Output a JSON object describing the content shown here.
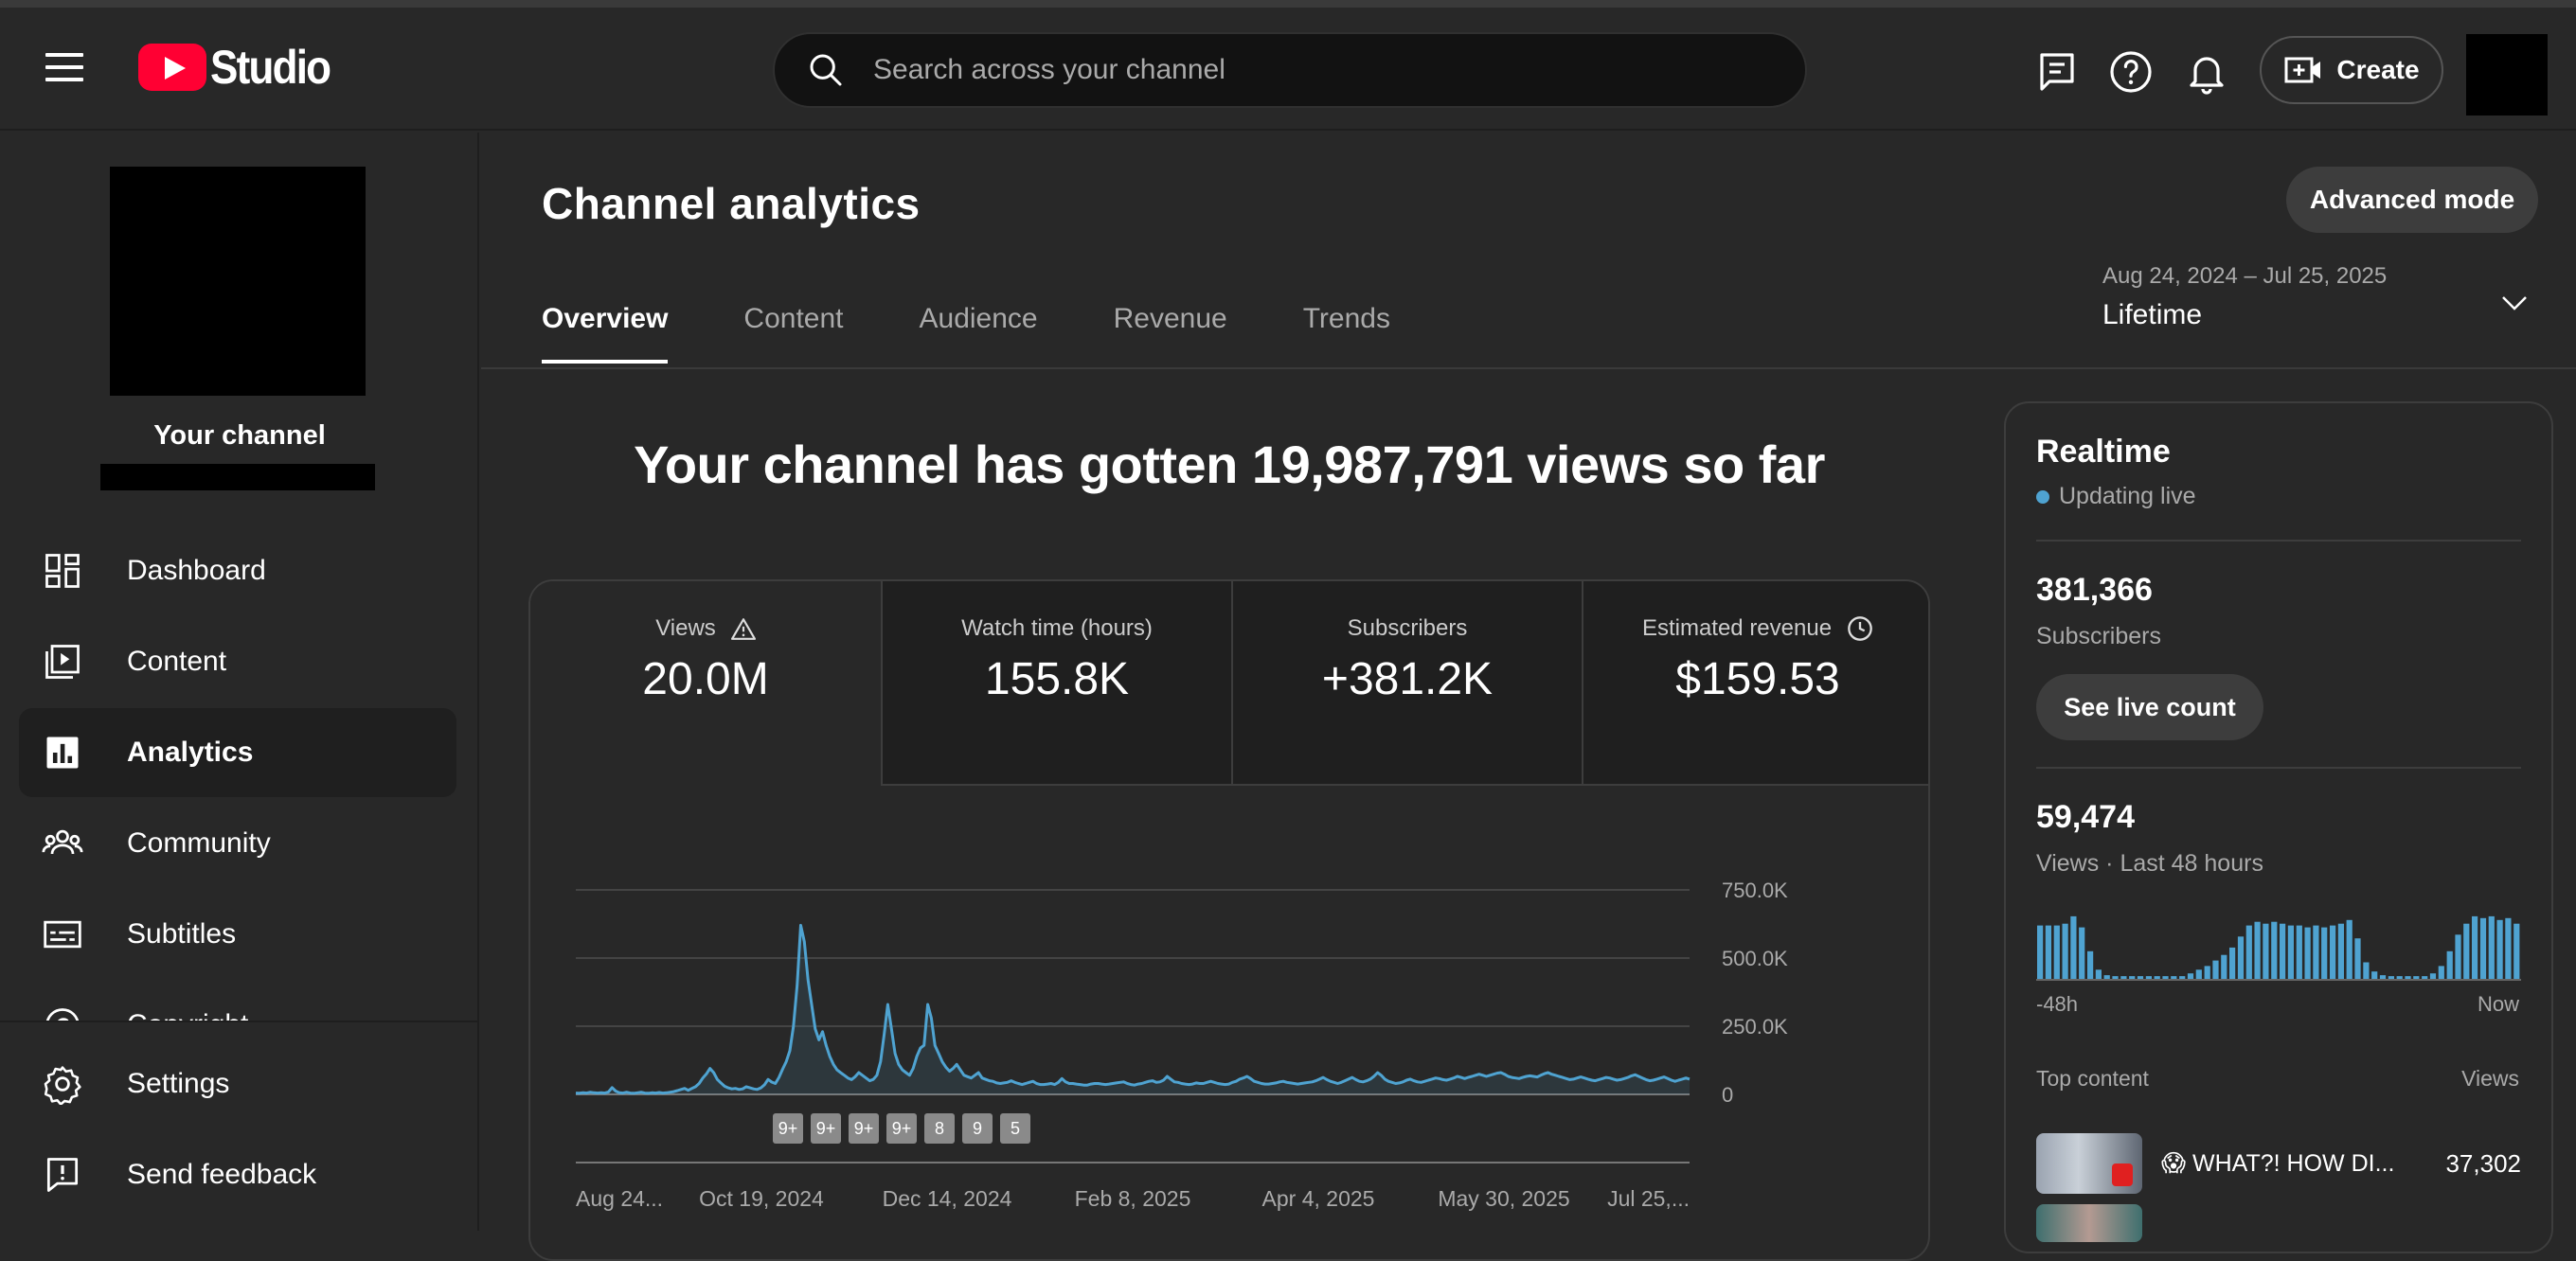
{
  "app": {
    "brand_name": "Studio",
    "search_placeholder": "Search across your channel",
    "create_label": "Create",
    "colors": {
      "background": "#282828",
      "accent": "#ff0033",
      "chart_line": "#4fa3d1"
    }
  },
  "sidebar": {
    "channel_title": "Your channel",
    "items": [
      {
        "label": "Dashboard",
        "icon": "dashboard-icon"
      },
      {
        "label": "Content",
        "icon": "content-icon"
      },
      {
        "label": "Analytics",
        "icon": "analytics-icon",
        "active": true
      },
      {
        "label": "Community",
        "icon": "community-icon"
      },
      {
        "label": "Subtitles",
        "icon": "subtitles-icon"
      },
      {
        "label": "Copyright",
        "icon": "copyright-icon"
      }
    ],
    "bottom_items": [
      {
        "label": "Settings",
        "icon": "gear-icon"
      },
      {
        "label": "Send feedback",
        "icon": "feedback-icon"
      }
    ]
  },
  "page": {
    "title": "Channel analytics",
    "advanced_mode_label": "Advanced mode",
    "tabs": [
      "Overview",
      "Content",
      "Audience",
      "Revenue",
      "Trends"
    ],
    "active_tab": "Overview",
    "date_range": {
      "range": "Aug 24, 2024 – Jul 25, 2025",
      "label": "Lifetime"
    },
    "headline": "Your channel has gotten 19,987,791 views so far"
  },
  "metrics": [
    {
      "label": "Views",
      "value": "20.0M",
      "icon": "warning-icon"
    },
    {
      "label": "Watch time (hours)",
      "value": "155.8K"
    },
    {
      "label": "Subscribers",
      "value": "+381.2K"
    },
    {
      "label": "Estimated revenue",
      "value": "$159.53",
      "icon": "clock-icon"
    }
  ],
  "chart_data": {
    "type": "line",
    "series": [
      {
        "values": [
          5,
          4,
          6,
          5,
          8,
          6,
          5,
          6,
          5,
          9,
          25,
          12,
          6,
          5,
          8,
          5,
          4,
          6,
          8,
          5,
          4,
          6,
          5,
          7,
          5,
          6,
          8,
          10,
          14,
          18,
          22,
          15,
          22,
          28,
          40,
          60,
          75,
          95,
          80,
          55,
          42,
          30,
          24,
          20,
          22,
          18,
          20,
          28,
          24,
          20,
          18,
          24,
          35,
          55,
          45,
          40,
          62,
          92,
          120,
          160,
          250,
          400,
          620,
          560,
          420,
          330,
          240,
          200,
          230,
          180,
          140,
          110,
          90,
          80,
          70,
          60,
          54,
          65,
          80,
          70,
          60,
          50,
          55,
          70,
          120,
          220,
          330,
          240,
          150,
          110,
          90,
          80,
          70,
          95,
          140,
          170,
          180,
          330,
          280,
          180,
          150,
          120,
          100,
          85,
          95,
          110,
          90,
          70,
          65,
          60,
          70,
          80,
          60,
          55,
          50,
          48,
          42,
          40,
          42,
          44,
          50,
          44,
          40,
          36,
          40,
          44,
          48,
          40,
          36,
          36,
          38,
          40,
          36,
          44,
          58,
          46,
          40,
          40,
          38,
          36,
          34,
          34,
          38,
          40,
          40,
          38,
          36,
          38,
          40,
          42,
          44,
          46,
          40,
          36,
          34,
          38,
          40,
          44,
          48,
          50,
          44,
          46,
          52,
          66,
          56,
          46,
          44,
          40,
          38,
          36,
          38,
          42,
          40,
          40,
          44,
          48,
          44,
          40,
          38,
          36,
          38,
          44,
          48,
          56,
          60,
          66,
          58,
          48,
          44,
          40,
          38,
          38,
          40,
          42,
          46,
          48,
          44,
          42,
          40,
          38,
          40,
          42,
          44,
          46,
          50,
          56,
          62,
          54,
          48,
          44,
          40,
          44,
          50,
          56,
          62,
          54,
          48,
          46,
          50,
          56,
          66,
          80,
          70,
          56,
          48,
          44,
          40,
          42,
          46,
          52,
          56,
          50,
          46,
          44,
          48,
          52,
          56,
          60,
          58,
          54,
          52,
          56,
          60,
          66,
          62,
          58,
          62,
          66,
          70,
          74,
          70,
          66,
          70,
          74,
          78,
          80,
          74,
          66,
          62,
          60,
          58,
          62,
          66,
          68,
          66,
          64,
          70,
          76,
          80,
          74,
          70,
          66,
          62,
          58,
          54,
          56,
          60,
          64,
          60,
          56,
          52,
          50,
          54,
          58,
          62,
          60,
          56,
          52,
          54,
          58,
          62,
          68,
          72,
          66,
          60,
          54,
          50,
          52,
          56,
          60,
          64,
          58,
          52,
          48,
          52,
          56,
          60,
          56
        ]
      }
    ],
    "x_tick_labels": [
      "Aug 24...",
      "Oct 19, 2024",
      "Dec 14, 2024",
      "Feb 8, 2025",
      "Apr 4, 2025",
      "May 30, 2025",
      "Jul 25,..."
    ],
    "y_tick_labels": [
      "750.0K",
      "500.0K",
      "250.0K",
      "0"
    ],
    "ylim": [
      0,
      750000
    ],
    "grid": true,
    "annotation_badges": [
      "9+",
      "9+",
      "9+",
      "9+",
      "8",
      "9",
      "5"
    ]
  },
  "realtime": {
    "title": "Realtime",
    "status": "Updating live",
    "subscribers_count": "381,366",
    "subscribers_label": "Subscribers",
    "see_live_label": "See live count",
    "views_count": "59,474",
    "views_label": "Views · Last 48 hours",
    "bars": [
      58,
      58,
      58,
      60,
      68,
      56,
      30,
      10,
      4,
      3,
      3,
      3,
      3,
      3,
      3,
      3,
      3,
      3,
      6,
      10,
      14,
      20,
      26,
      34,
      46,
      58,
      62,
      60,
      62,
      60,
      58,
      58,
      56,
      58,
      56,
      58,
      60,
      64,
      44,
      18,
      8,
      4,
      3,
      3,
      3,
      3,
      3,
      6,
      14,
      30,
      48,
      60,
      68,
      66,
      68,
      64,
      66,
      60
    ],
    "axis_start": "-48h",
    "axis_end": "Now",
    "top_content_label": "Top content",
    "top_content_views_label": "Views",
    "top_content": [
      {
        "title": "😱 WHAT?! HOW DI...",
        "views": "37,302"
      }
    ]
  }
}
